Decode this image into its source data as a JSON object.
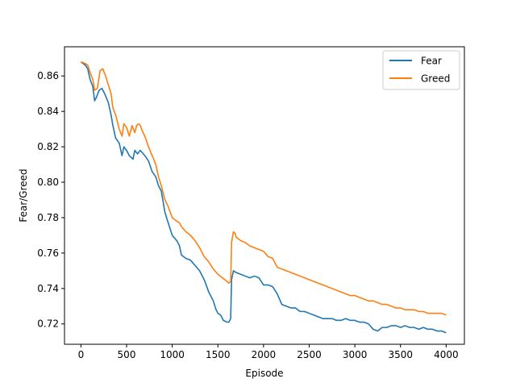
{
  "chart_data": {
    "type": "line",
    "title": "",
    "xlabel": "Episode",
    "ylabel": "Fear/Greed",
    "xlim": [
      -180,
      4200
    ],
    "ylim": [
      0.7085,
      0.8765
    ],
    "xticks": [
      0,
      500,
      1000,
      1500,
      2000,
      2500,
      3000,
      3500,
      4000
    ],
    "xtick_labels": [
      "0",
      "500",
      "1000",
      "1500",
      "2000",
      "2500",
      "3000",
      "3500",
      "4000"
    ],
    "yticks": [
      0.72,
      0.74,
      0.76,
      0.78,
      0.8,
      0.82,
      0.84,
      0.86
    ],
    "ytick_labels": [
      "0.72",
      "0.74",
      "0.76",
      "0.78",
      "0.80",
      "0.82",
      "0.84",
      "0.86"
    ],
    "grid": false,
    "legend_position": "top-right",
    "series": [
      {
        "name": "Fear",
        "color": "#1f77b4",
        "x": [
          0,
          50,
          75,
          100,
          130,
          150,
          170,
          200,
          230,
          260,
          300,
          330,
          350,
          380,
          420,
          450,
          470,
          500,
          530,
          570,
          590,
          620,
          650,
          700,
          740,
          780,
          820,
          850,
          880,
          920,
          950,
          1000,
          1050,
          1080,
          1100,
          1150,
          1200,
          1250,
          1300,
          1350,
          1400,
          1420,
          1450,
          1480,
          1500,
          1530,
          1560,
          1600,
          1620,
          1640,
          1650,
          1670,
          1700,
          1750,
          1800,
          1850,
          1900,
          1950,
          2000,
          2050,
          2100,
          2150,
          2200,
          2250,
          2300,
          2350,
          2400,
          2450,
          2500,
          2550,
          2600,
          2650,
          2700,
          2750,
          2800,
          2850,
          2900,
          2950,
          3000,
          3050,
          3100,
          3150,
          3200,
          3250,
          3300,
          3350,
          3400,
          3450,
          3500,
          3550,
          3600,
          3650,
          3700,
          3750,
          3800,
          3850,
          3900,
          3950,
          4000
        ],
        "y": [
          0.868,
          0.866,
          0.864,
          0.858,
          0.854,
          0.846,
          0.848,
          0.852,
          0.853,
          0.85,
          0.845,
          0.838,
          0.832,
          0.825,
          0.822,
          0.815,
          0.82,
          0.818,
          0.815,
          0.813,
          0.818,
          0.816,
          0.818,
          0.815,
          0.812,
          0.806,
          0.803,
          0.798,
          0.795,
          0.783,
          0.778,
          0.77,
          0.767,
          0.764,
          0.759,
          0.757,
          0.756,
          0.753,
          0.75,
          0.745,
          0.738,
          0.736,
          0.733,
          0.728,
          0.726,
          0.725,
          0.722,
          0.721,
          0.721,
          0.723,
          0.745,
          0.75,
          0.749,
          0.748,
          0.747,
          0.746,
          0.747,
          0.746,
          0.742,
          0.742,
          0.741,
          0.737,
          0.731,
          0.73,
          0.729,
          0.729,
          0.727,
          0.727,
          0.726,
          0.725,
          0.724,
          0.723,
          0.723,
          0.723,
          0.722,
          0.722,
          0.723,
          0.722,
          0.722,
          0.721,
          0.721,
          0.72,
          0.717,
          0.716,
          0.718,
          0.718,
          0.719,
          0.719,
          0.718,
          0.719,
          0.718,
          0.718,
          0.717,
          0.718,
          0.717,
          0.717,
          0.716,
          0.716,
          0.715
        ]
      },
      {
        "name": "Greed",
        "color": "#ff7f0e",
        "x": [
          0,
          50,
          75,
          100,
          130,
          150,
          180,
          210,
          240,
          270,
          300,
          330,
          350,
          380,
          420,
          450,
          470,
          500,
          530,
          560,
          590,
          610,
          630,
          650,
          680,
          700,
          740,
          780,
          820,
          850,
          880,
          920,
          950,
          1000,
          1050,
          1080,
          1100,
          1150,
          1200,
          1250,
          1300,
          1350,
          1400,
          1450,
          1500,
          1550,
          1600,
          1620,
          1640,
          1650,
          1670,
          1690,
          1700,
          1750,
          1800,
          1850,
          1900,
          1950,
          2000,
          2050,
          2100,
          2150,
          2200,
          2250,
          2300,
          2350,
          2400,
          2450,
          2500,
          2550,
          2600,
          2650,
          2700,
          2750,
          2800,
          2850,
          2900,
          2950,
          3000,
          3050,
          3100,
          3150,
          3200,
          3250,
          3300,
          3350,
          3400,
          3450,
          3500,
          3550,
          3600,
          3650,
          3700,
          3750,
          3800,
          3850,
          3900,
          3950,
          4000
        ],
        "y": [
          0.868,
          0.867,
          0.866,
          0.862,
          0.858,
          0.852,
          0.853,
          0.863,
          0.864,
          0.86,
          0.855,
          0.85,
          0.842,
          0.838,
          0.83,
          0.826,
          0.833,
          0.831,
          0.826,
          0.832,
          0.828,
          0.832,
          0.833,
          0.832,
          0.828,
          0.826,
          0.82,
          0.815,
          0.81,
          0.803,
          0.798,
          0.79,
          0.787,
          0.78,
          0.778,
          0.777,
          0.775,
          0.772,
          0.77,
          0.767,
          0.763,
          0.758,
          0.755,
          0.751,
          0.748,
          0.746,
          0.744,
          0.743,
          0.744,
          0.766,
          0.772,
          0.771,
          0.769,
          0.767,
          0.766,
          0.764,
          0.763,
          0.762,
          0.761,
          0.758,
          0.757,
          0.752,
          0.751,
          0.75,
          0.749,
          0.748,
          0.747,
          0.746,
          0.745,
          0.744,
          0.743,
          0.742,
          0.741,
          0.74,
          0.739,
          0.738,
          0.737,
          0.736,
          0.736,
          0.735,
          0.734,
          0.733,
          0.733,
          0.732,
          0.731,
          0.731,
          0.73,
          0.729,
          0.729,
          0.728,
          0.728,
          0.728,
          0.727,
          0.727,
          0.726,
          0.726,
          0.726,
          0.726,
          0.725
        ]
      }
    ]
  }
}
